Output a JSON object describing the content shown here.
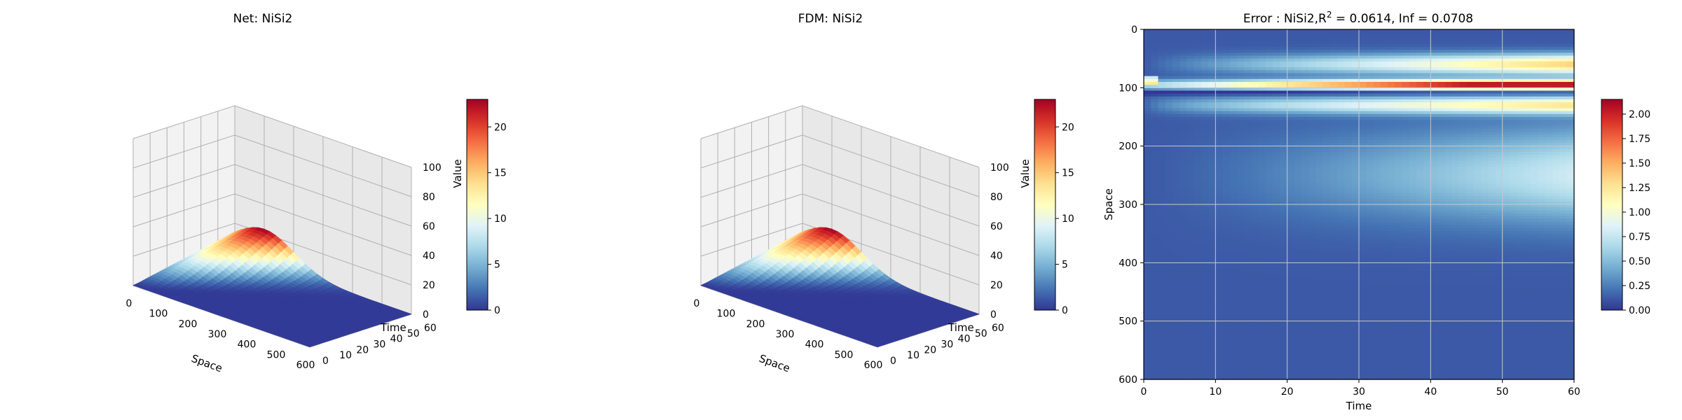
{
  "colors": {
    "colormap": "RdYlBu_r",
    "stops": [
      "#313695",
      "#4575b4",
      "#74add1",
      "#abd9e9",
      "#e0f3f8",
      "#ffffbf",
      "#fee090",
      "#fdae61",
      "#f46d43",
      "#d73027",
      "#a50026"
    ],
    "pane": "#f2f2f2",
    "grid": "#b0b0b0"
  },
  "chart_data": [
    {
      "type": "surface3d",
      "title": "Net: NiSi2",
      "xlabel": "Space",
      "ylabel": "Time",
      "zlabel": "Value",
      "xticks": [
        "0",
        "100",
        "200",
        "300",
        "400",
        "500",
        "600"
      ],
      "yticks": [
        "0",
        "10",
        "20",
        "30",
        "40",
        "50",
        "60"
      ],
      "zticks": [
        "0",
        "20",
        "40",
        "60",
        "80",
        "100"
      ],
      "xlim": [
        0,
        600
      ],
      "ylim": [
        0,
        60
      ],
      "zlim": [
        0,
        100
      ],
      "peak": {
        "space": 100,
        "time": 60,
        "value": 23
      },
      "colorbar": {
        "label": "Value",
        "min": 0,
        "max": 23,
        "ticks": [
          "0",
          "5",
          "10",
          "15",
          "20"
        ],
        "tick_values": [
          0,
          5,
          10,
          15,
          20
        ]
      }
    },
    {
      "type": "surface3d",
      "title": "FDM: NiSi2",
      "xlabel": "Space",
      "ylabel": "Time",
      "zlabel": "Value",
      "xticks": [
        "0",
        "100",
        "200",
        "300",
        "400",
        "500",
        "600"
      ],
      "yticks": [
        "0",
        "10",
        "20",
        "30",
        "40",
        "50",
        "60"
      ],
      "zticks": [
        "0",
        "20",
        "40",
        "60",
        "80",
        "100"
      ],
      "xlim": [
        0,
        600
      ],
      "ylim": [
        0,
        60
      ],
      "zlim": [
        0,
        100
      ],
      "peak": {
        "space": 100,
        "time": 60,
        "value": 23
      },
      "colorbar": {
        "label": "Value",
        "min": 0,
        "max": 23,
        "ticks": [
          "0",
          "5",
          "10",
          "15",
          "20"
        ],
        "tick_values": [
          0,
          5,
          10,
          15,
          20
        ]
      }
    },
    {
      "type": "heatmap",
      "title_prefix": "Error : NiSi2,",
      "title_r": "R",
      "title_sup": "2",
      "title_suffix": " = 0.0614, Inf = 0.0708",
      "xlabel": "Time",
      "ylabel": "Space",
      "xticks": [
        "0",
        "10",
        "20",
        "30",
        "40",
        "50",
        "60"
      ],
      "yticks": [
        "0",
        "100",
        "200",
        "300",
        "400",
        "500",
        "600"
      ],
      "xlim": [
        0,
        60
      ],
      "ylim": [
        600,
        0
      ],
      "grid": true,
      "colorbar": {
        "min": 0,
        "max": 2.15,
        "ticks": [
          "0.00",
          "0.25",
          "0.50",
          "0.75",
          "1.00",
          "1.25",
          "1.50",
          "1.75",
          "2.00"
        ],
        "tick_values": [
          0,
          0.25,
          0.5,
          0.75,
          1.0,
          1.25,
          1.5,
          1.75,
          2.0
        ]
      },
      "features": [
        {
          "space": 60,
          "max_error": 1.3
        },
        {
          "space": 95,
          "max_error": 2.1
        },
        {
          "space": 108,
          "max_error": 0.1
        },
        {
          "space": 130,
          "max_error": 1.15
        },
        {
          "space": 250,
          "max_error": 0.8
        }
      ]
    }
  ]
}
